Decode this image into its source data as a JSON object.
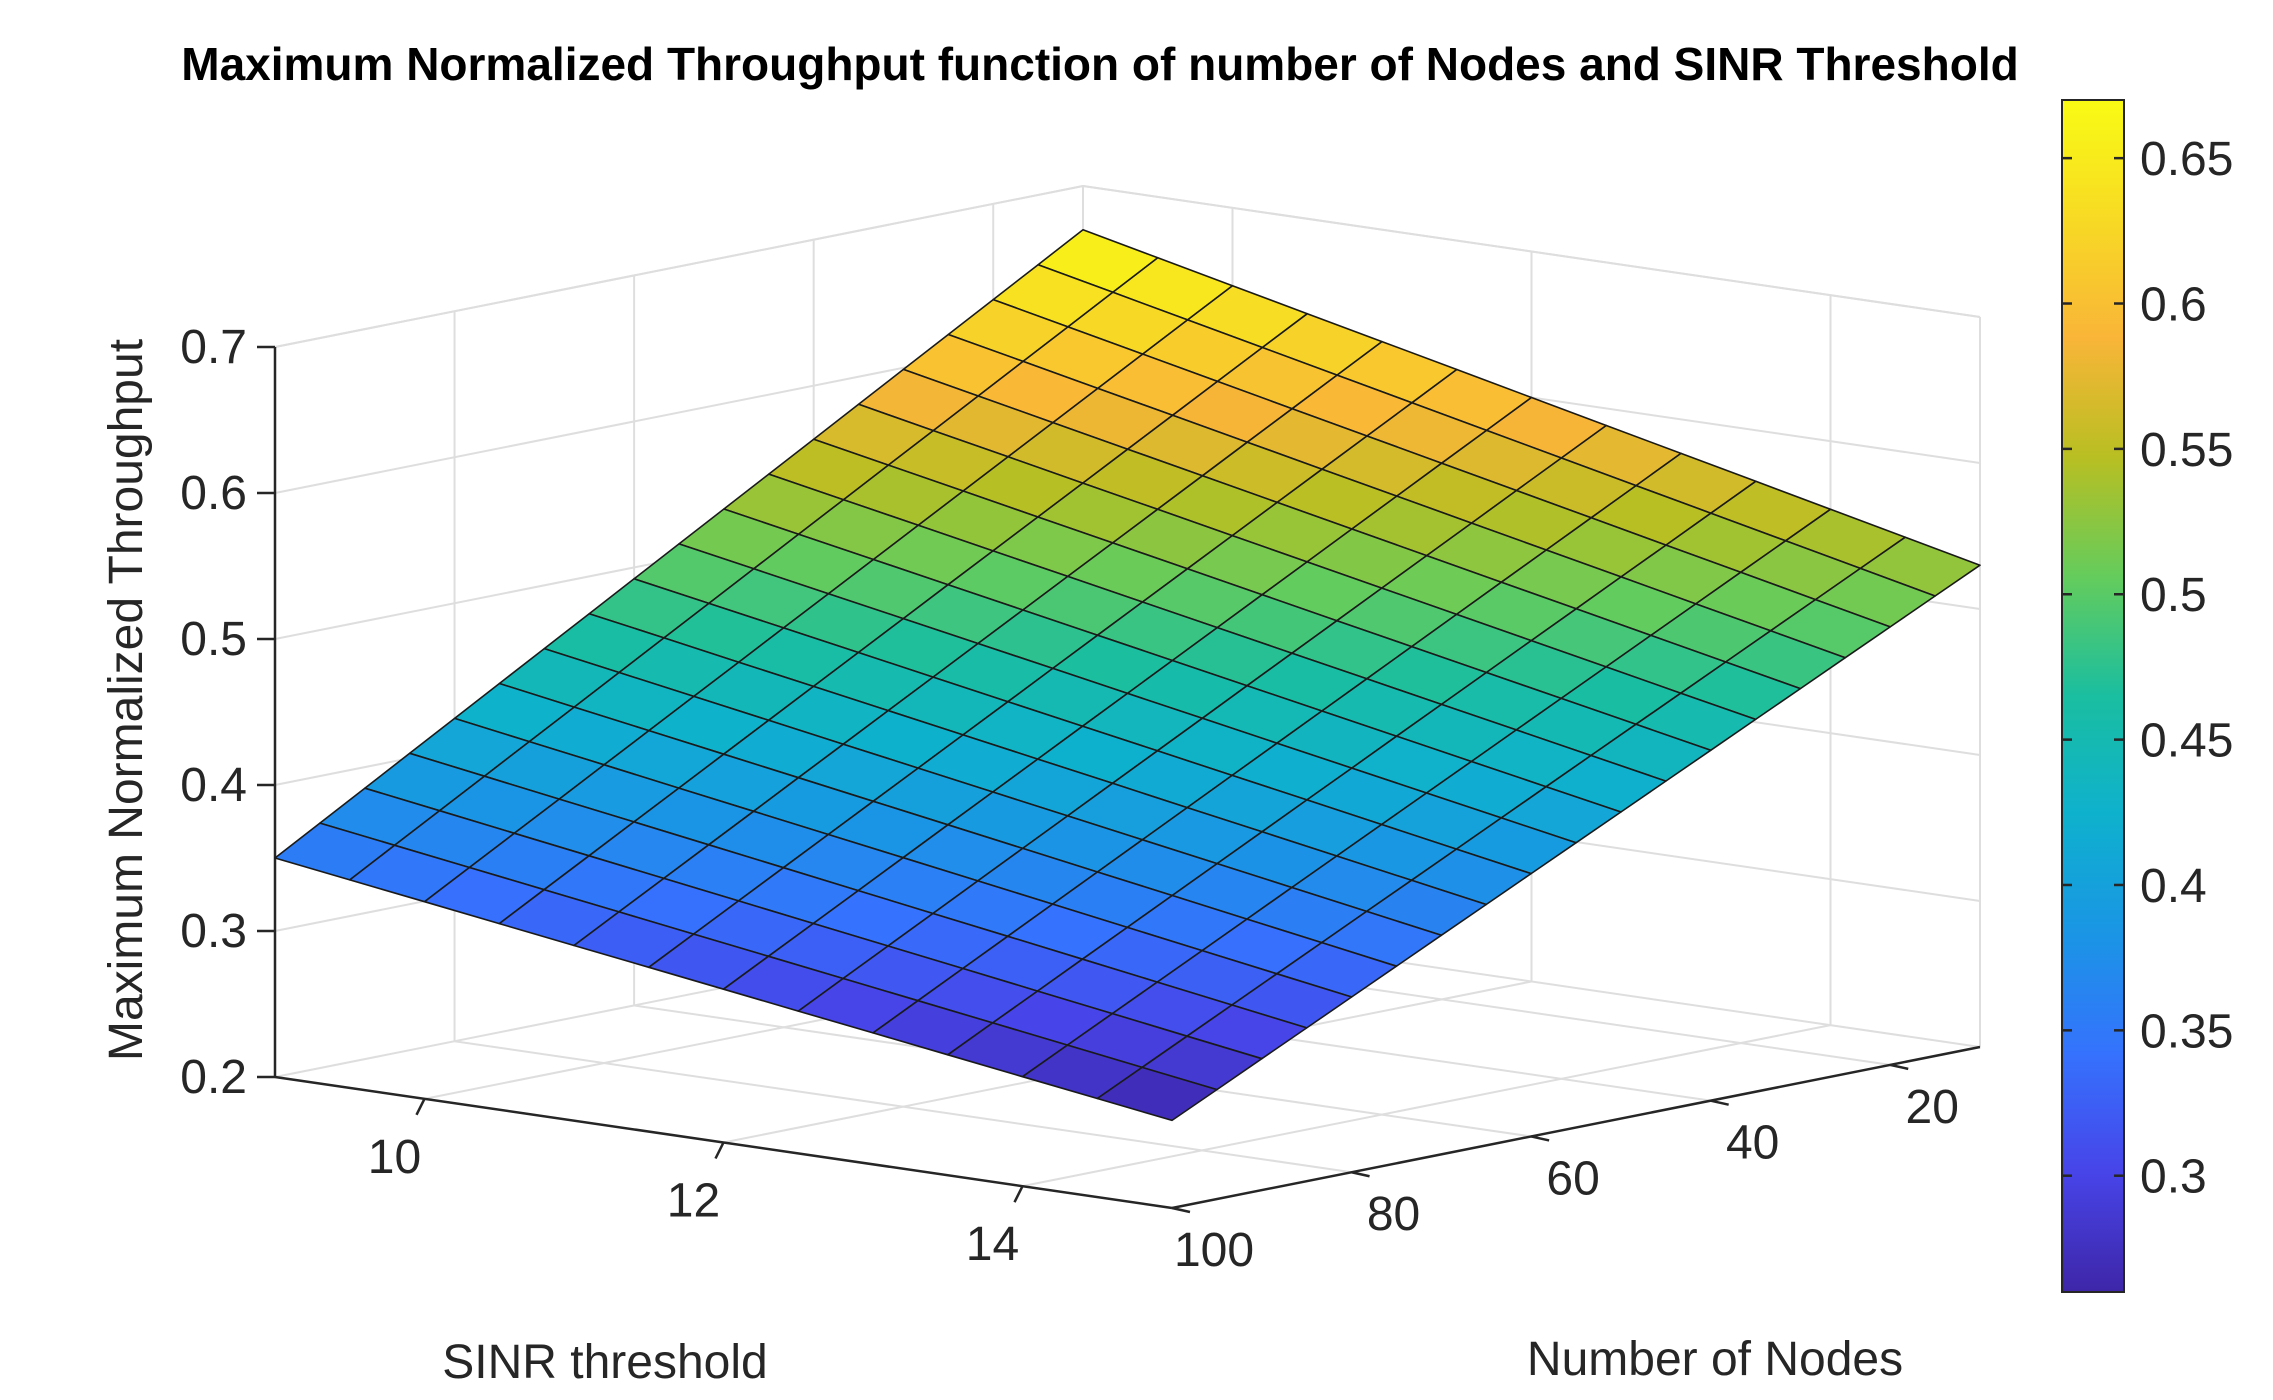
{
  "chart_data": {
    "type": "surface",
    "title": "Maximum Normalized Throughput function of number of Nodes and SINR Threshold",
    "xlabel": "SINR threshold",
    "ylabel": "Number of Nodes",
    "zlabel": "Maximum Normalized Throughput",
    "x_range": [
      9,
      15
    ],
    "y_range": [
      10,
      100
    ],
    "z_range": [
      0.2,
      0.7
    ],
    "x_ticks": [
      "10",
      "12",
      "14"
    ],
    "y_ticks": [
      "20",
      "40",
      "60",
      "80",
      "100"
    ],
    "z_ticks": [
      "0.2",
      "0.3",
      "0.4",
      "0.5",
      "0.6",
      "0.7"
    ],
    "colorbar_ticks": [
      "0.3",
      "0.35",
      "0.4",
      "0.45",
      "0.5",
      "0.55",
      "0.6",
      "0.65"
    ],
    "colorbar_range": [
      0.26,
      0.67
    ],
    "colormap": "parula",
    "grid": true,
    "corner_values": [
      {
        "x": 9,
        "y": 100,
        "z": 0.35
      },
      {
        "x": 15,
        "y": 100,
        "z": 0.26
      },
      {
        "x": 9,
        "y": 10,
        "z": 0.67
      },
      {
        "x": 15,
        "y": 10,
        "z": 0.53
      }
    ],
    "mesh": {
      "x_cells": 12,
      "y_cells": 18
    }
  }
}
